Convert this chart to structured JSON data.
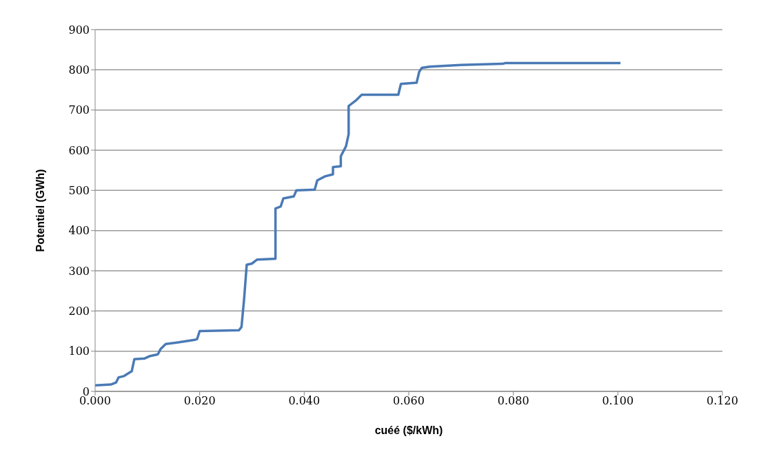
{
  "chart_data": {
    "type": "line",
    "xlabel": "cuéé ($/kWh)",
    "ylabel": "Potentiel (GWh)",
    "xlim": [
      0,
      0.12
    ],
    "xticks": [
      {
        "value": 0,
        "label": "0.000"
      },
      {
        "value": 0.02,
        "label": "0.020"
      },
      {
        "value": 0.04,
        "label": "0.040"
      },
      {
        "value": 0.06,
        "label": "0.060"
      },
      {
        "value": 0.08,
        "label": "0.080"
      },
      {
        "value": 0.1,
        "label": "0.100"
      },
      {
        "value": 0.12,
        "label": "0.120"
      }
    ],
    "ylim": [
      0,
      900
    ],
    "yticks": [
      0,
      100,
      200,
      300,
      400,
      500,
      600,
      700,
      800,
      900
    ],
    "grid": "y",
    "marker": "none",
    "line_style": "solid",
    "series": [
      {
        "color": "#4a7ab5",
        "x": [
          0,
          0.003,
          0.004,
          0.0045,
          0.0055,
          0.007,
          0.0075,
          0.0095,
          0.0105,
          0.012,
          0.0125,
          0.0135,
          0.016,
          0.019,
          0.0195,
          0.02,
          0.0275,
          0.028,
          0.0285,
          0.029,
          0.03,
          0.031,
          0.0345,
          0.0345,
          0.0355,
          0.036,
          0.038,
          0.0385,
          0.042,
          0.0425,
          0.044,
          0.0455,
          0.0455,
          0.047,
          0.047,
          0.048,
          0.0485,
          0.0485,
          0.05,
          0.051,
          0.058,
          0.0585,
          0.0615,
          0.062,
          0.0625,
          0.064,
          0.07,
          0.078,
          0.0785,
          0.1005
        ],
        "values": [
          15,
          17,
          22,
          35,
          38,
          50,
          80,
          82,
          88,
          92,
          105,
          118,
          122,
          128,
          130,
          150,
          152,
          160,
          230,
          315,
          318,
          328,
          330,
          455,
          460,
          480,
          485,
          500,
          502,
          525,
          535,
          540,
          558,
          560,
          585,
          610,
          640,
          710,
          725,
          738,
          738,
          765,
          768,
          795,
          805,
          808,
          812,
          815,
          817,
          817
        ]
      }
    ]
  }
}
